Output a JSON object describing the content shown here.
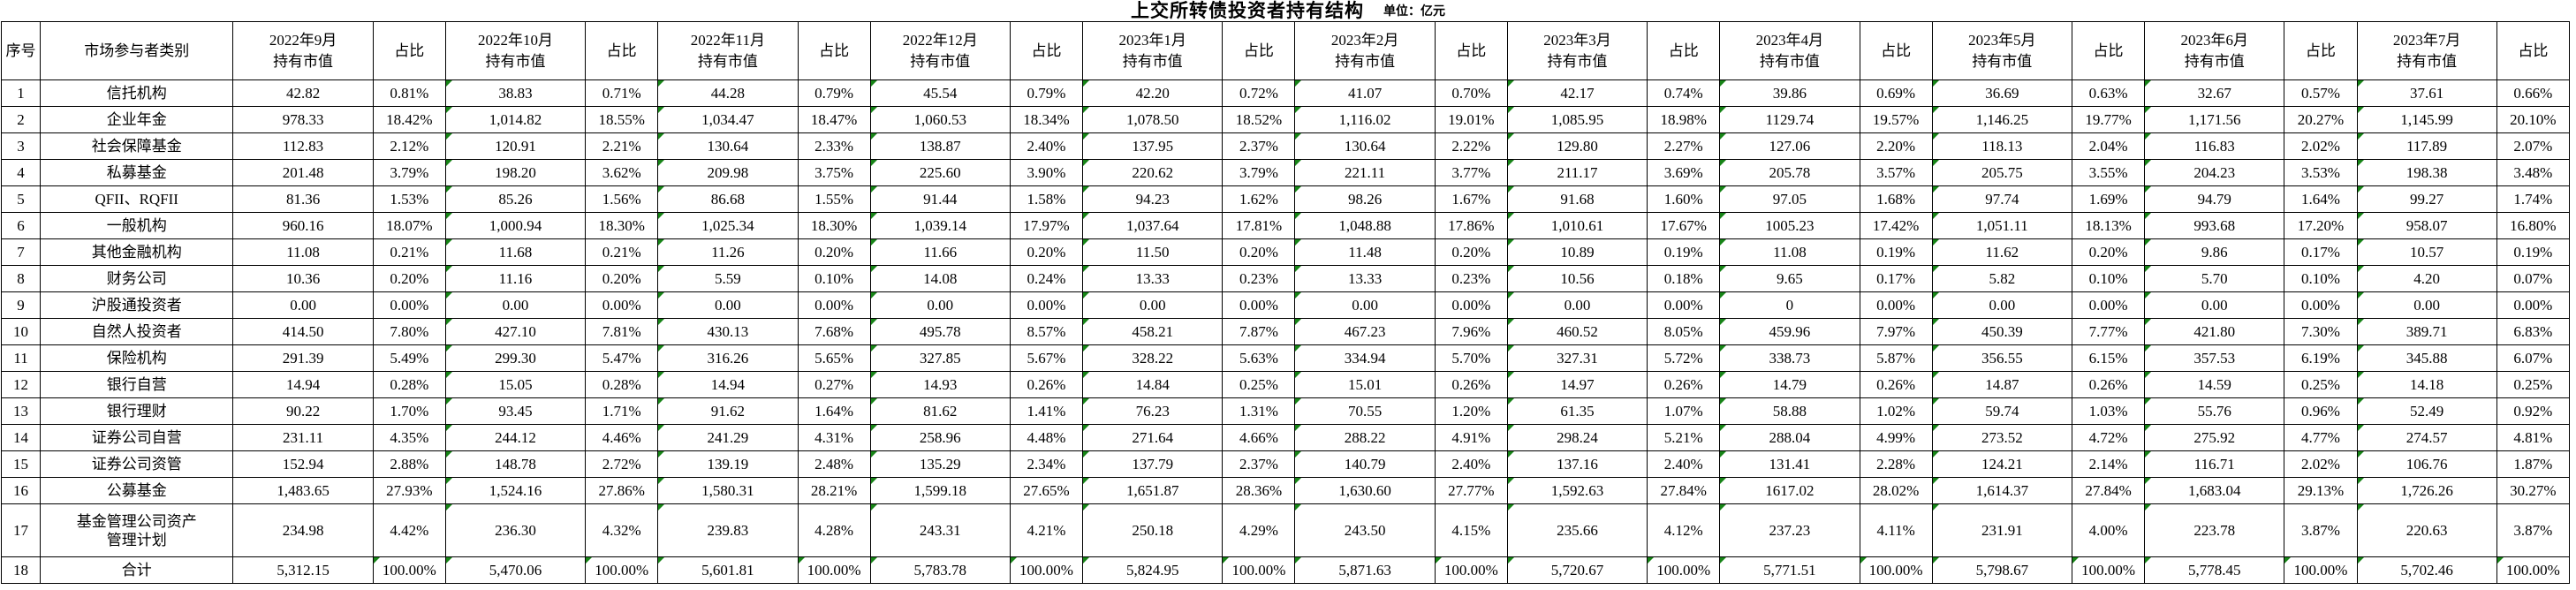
{
  "title": "上交所转债投资者持有结构",
  "unit_label": "单位：亿元",
  "colors": {
    "grid": "#000000",
    "error_flag_green": "#178417",
    "background": "#ffffff"
  },
  "table": {
    "header": {
      "index": "序号",
      "category": "市场参与者类别",
      "holding_suffix": "持有市值",
      "ratio": "占比",
      "months": [
        "2022年9月",
        "2022年10月",
        "2022年11月",
        "2022年12月",
        "2023年1月",
        "2023年2月",
        "2023年3月",
        "2023年4月",
        "2023年5月",
        "2023年6月",
        "2023年7月"
      ]
    },
    "rows": [
      {
        "no": "1",
        "category": "信托机构",
        "values": [
          "42.82",
          "0.81%",
          "38.83",
          "0.71%",
          "44.28",
          "0.79%",
          "45.54",
          "0.79%",
          "42.20",
          "0.72%",
          "41.07",
          "0.70%",
          "42.17",
          "0.74%",
          "39.86",
          "0.69%",
          "36.69",
          "0.63%",
          "32.67",
          "0.57%",
          "37.61",
          "0.66%"
        ]
      },
      {
        "no": "2",
        "category": "企业年金",
        "values": [
          "978.33",
          "18.42%",
          "1,014.82",
          "18.55%",
          "1,034.47",
          "18.47%",
          "1,060.53",
          "18.34%",
          "1,078.50",
          "18.52%",
          "1,116.02",
          "19.01%",
          "1,085.95",
          "18.98%",
          "1129.74",
          "19.57%",
          "1,146.25",
          "19.77%",
          "1,171.56",
          "20.27%",
          "1,145.99",
          "20.10%"
        ]
      },
      {
        "no": "3",
        "category": "社会保障基金",
        "values": [
          "112.83",
          "2.12%",
          "120.91",
          "2.21%",
          "130.64",
          "2.33%",
          "138.87",
          "2.40%",
          "137.95",
          "2.37%",
          "130.64",
          "2.22%",
          "129.80",
          "2.27%",
          "127.06",
          "2.20%",
          "118.13",
          "2.04%",
          "116.83",
          "2.02%",
          "117.89",
          "2.07%"
        ]
      },
      {
        "no": "4",
        "category": "私募基金",
        "values": [
          "201.48",
          "3.79%",
          "198.20",
          "3.62%",
          "209.98",
          "3.75%",
          "225.60",
          "3.90%",
          "220.62",
          "3.79%",
          "221.11",
          "3.77%",
          "211.17",
          "3.69%",
          "205.78",
          "3.57%",
          "205.75",
          "3.55%",
          "204.23",
          "3.53%",
          "198.38",
          "3.48%"
        ]
      },
      {
        "no": "5",
        "category": "QFII、RQFII",
        "values": [
          "81.36",
          "1.53%",
          "85.26",
          "1.56%",
          "86.68",
          "1.55%",
          "91.44",
          "1.58%",
          "94.23",
          "1.62%",
          "98.26",
          "1.67%",
          "91.68",
          "1.60%",
          "97.05",
          "1.68%",
          "97.74",
          "1.69%",
          "94.79",
          "1.64%",
          "99.27",
          "1.74%"
        ]
      },
      {
        "no": "6",
        "category": "一般机构",
        "values": [
          "960.16",
          "18.07%",
          "1,000.94",
          "18.30%",
          "1,025.34",
          "18.30%",
          "1,039.14",
          "17.97%",
          "1,037.64",
          "17.81%",
          "1,048.88",
          "17.86%",
          "1,010.61",
          "17.67%",
          "1005.23",
          "17.42%",
          "1,051.11",
          "18.13%",
          "993.68",
          "17.20%",
          "958.07",
          "16.80%"
        ]
      },
      {
        "no": "7",
        "category": "其他金融机构",
        "values": [
          "11.08",
          "0.21%",
          "11.68",
          "0.21%",
          "11.26",
          "0.20%",
          "11.66",
          "0.20%",
          "11.50",
          "0.20%",
          "11.48",
          "0.20%",
          "10.89",
          "0.19%",
          "11.08",
          "0.19%",
          "11.62",
          "0.20%",
          "9.86",
          "0.17%",
          "10.57",
          "0.19%"
        ]
      },
      {
        "no": "8",
        "category": "财务公司",
        "values": [
          "10.36",
          "0.20%",
          "11.16",
          "0.20%",
          "5.59",
          "0.10%",
          "14.08",
          "0.24%",
          "13.33",
          "0.23%",
          "13.33",
          "0.23%",
          "10.56",
          "0.18%",
          "9.65",
          "0.17%",
          "5.82",
          "0.10%",
          "5.70",
          "0.10%",
          "4.20",
          "0.07%"
        ]
      },
      {
        "no": "9",
        "category": "沪股通投资者",
        "values": [
          "0.00",
          "0.00%",
          "0.00",
          "0.00%",
          "0.00",
          "0.00%",
          "0.00",
          "0.00%",
          "0.00",
          "0.00%",
          "0.00",
          "0.00%",
          "0.00",
          "0.00%",
          "0",
          "0.00%",
          "0.00",
          "0.00%",
          "0.00",
          "0.00%",
          "0.00",
          "0.00%"
        ]
      },
      {
        "no": "10",
        "category": "自然人投资者",
        "values": [
          "414.50",
          "7.80%",
          "427.10",
          "7.81%",
          "430.13",
          "7.68%",
          "495.78",
          "8.57%",
          "458.21",
          "7.87%",
          "467.23",
          "7.96%",
          "460.52",
          "8.05%",
          "459.96",
          "7.97%",
          "450.39",
          "7.77%",
          "421.80",
          "7.30%",
          "389.71",
          "6.83%"
        ]
      },
      {
        "no": "11",
        "category": "保险机构",
        "values": [
          "291.39",
          "5.49%",
          "299.30",
          "5.47%",
          "316.26",
          "5.65%",
          "327.85",
          "5.67%",
          "328.22",
          "5.63%",
          "334.94",
          "5.70%",
          "327.31",
          "5.72%",
          "338.73",
          "5.87%",
          "356.55",
          "6.15%",
          "357.53",
          "6.19%",
          "345.88",
          "6.07%"
        ]
      },
      {
        "no": "12",
        "category": "银行自营",
        "values": [
          "14.94",
          "0.28%",
          "15.05",
          "0.28%",
          "14.94",
          "0.27%",
          "14.93",
          "0.26%",
          "14.84",
          "0.25%",
          "15.01",
          "0.26%",
          "14.97",
          "0.26%",
          "14.79",
          "0.26%",
          "14.87",
          "0.26%",
          "14.59",
          "0.25%",
          "14.18",
          "0.25%"
        ]
      },
      {
        "no": "13",
        "category": "银行理财",
        "values": [
          "90.22",
          "1.70%",
          "93.45",
          "1.71%",
          "91.62",
          "1.64%",
          "81.62",
          "1.41%",
          "76.23",
          "1.31%",
          "70.55",
          "1.20%",
          "61.35",
          "1.07%",
          "58.88",
          "1.02%",
          "59.74",
          "1.03%",
          "55.76",
          "0.96%",
          "52.49",
          "0.92%"
        ]
      },
      {
        "no": "14",
        "category": "证券公司自营",
        "values": [
          "231.11",
          "4.35%",
          "244.12",
          "4.46%",
          "241.29",
          "4.31%",
          "258.96",
          "4.48%",
          "271.64",
          "4.66%",
          "288.22",
          "4.91%",
          "298.24",
          "5.21%",
          "288.04",
          "4.99%",
          "273.52",
          "4.72%",
          "275.92",
          "4.77%",
          "274.57",
          "4.81%"
        ]
      },
      {
        "no": "15",
        "category": "证券公司资管",
        "values": [
          "152.94",
          "2.88%",
          "148.78",
          "2.72%",
          "139.19",
          "2.48%",
          "135.29",
          "2.34%",
          "137.79",
          "2.37%",
          "140.79",
          "2.40%",
          "137.16",
          "2.40%",
          "131.41",
          "2.28%",
          "124.21",
          "2.14%",
          "116.71",
          "2.02%",
          "106.76",
          "1.87%"
        ]
      },
      {
        "no": "16",
        "category": "公募基金",
        "values": [
          "1,483.65",
          "27.93%",
          "1,524.16",
          "27.86%",
          "1,580.31",
          "28.21%",
          "1,599.18",
          "27.65%",
          "1,651.87",
          "28.36%",
          "1,630.60",
          "27.77%",
          "1,592.63",
          "27.84%",
          "1617.02",
          "28.02%",
          "1,614.37",
          "27.84%",
          "1,683.04",
          "29.13%",
          "1,726.26",
          "30.27%"
        ]
      },
      {
        "no": "17",
        "category": "基金管理公司资产\n管理计划",
        "values": [
          "234.98",
          "4.42%",
          "236.30",
          "4.32%",
          "239.83",
          "4.28%",
          "243.31",
          "4.21%",
          "250.18",
          "4.29%",
          "243.50",
          "4.15%",
          "235.66",
          "4.12%",
          "237.23",
          "4.11%",
          "231.91",
          "4.00%",
          "223.78",
          "3.87%",
          "220.63",
          "3.87%"
        ]
      },
      {
        "no": "18",
        "category": "合计",
        "total": true,
        "values": [
          "5,312.15",
          "100.00%",
          "5,470.06",
          "100.00%",
          "5,601.81",
          "100.00%",
          "5,783.78",
          "100.00%",
          "5,824.95",
          "100.00%",
          "5,871.63",
          "100.00%",
          "5,720.67",
          "100.00%",
          "5,771.51",
          "100.00%",
          "5,798.67",
          "100.00%",
          "5,778.45",
          "100.00%",
          "5,702.46",
          "100.00%"
        ]
      }
    ]
  }
}
